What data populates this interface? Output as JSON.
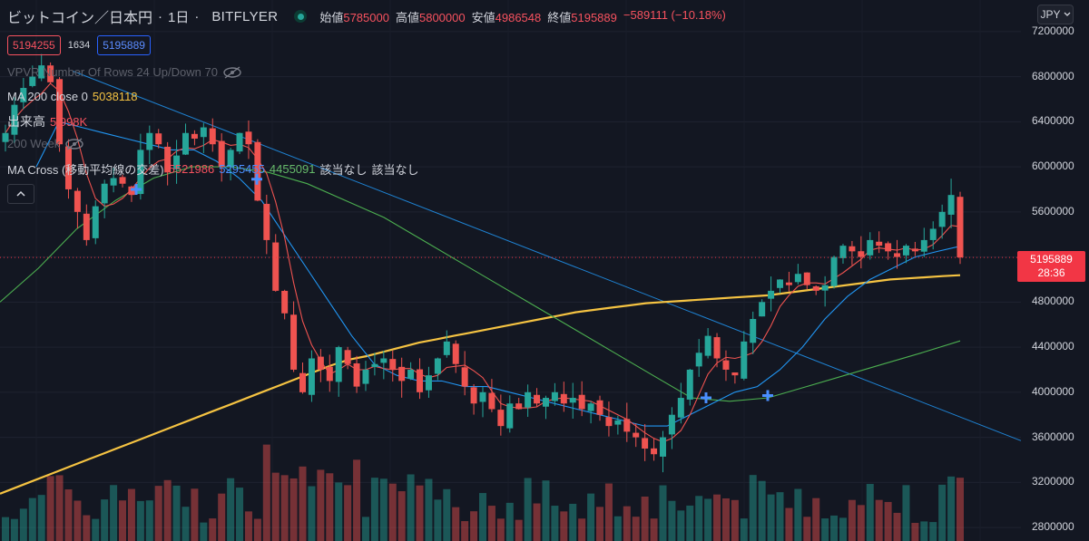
{
  "header": {
    "symbol": "ビットコイン／日本円",
    "interval": "1日",
    "exchange": "BITFLYER",
    "ohlc": [
      {
        "label": "始値",
        "value": "5785000"
      },
      {
        "label": "高値",
        "value": "5800000"
      },
      {
        "label": "安値",
        "value": "4986548"
      },
      {
        "label": "終値",
        "value": "5195889"
      }
    ],
    "change": "−589111 (−10.18%)"
  },
  "order": {
    "sell_price": "5194255",
    "spread": "1634",
    "buy_price": "5195889"
  },
  "indicators": {
    "vpvr": "VPVR Number Of Rows 24 Up/Down 70",
    "ma200_label": "MA 200 close 0",
    "ma200_value": "5038118",
    "volume_label": "出来高",
    "volume_value": "5.998K",
    "week200_label": "200 Week",
    "macross_label": "MA Cross (移動平均線の交差)",
    "macross_v1": "5521986",
    "macross_v2": "5295455",
    "macross_v3": "4455091",
    "macross_na1": "該当なし",
    "macross_na2": "該当なし"
  },
  "currency": "JPY",
  "last_price": "5195889",
  "countdown": "28:36",
  "colors": {
    "background": "#131722",
    "up": "#26a69a",
    "down": "#ef5350",
    "ma200": "#f5c342",
    "ma_fast": "#ef5350",
    "ma_mid": "#2196f3",
    "ma_slow": "#4caf50",
    "trendline": "#2196f3"
  },
  "chart_data": {
    "type": "candlestick",
    "y_axis_ticks": [
      7200000,
      6800000,
      6400000,
      6000000,
      5600000,
      5200000,
      4800000,
      4400000,
      4000000,
      3600000,
      3200000,
      2800000
    ],
    "y_axis_labels": [
      "7200000",
      "6800000",
      "6400000",
      "6000000",
      "5600000",
      "5195889",
      "4800000",
      "4400000",
      "4000000",
      "3600000",
      "3200000",
      "2800000"
    ],
    "ylim": [
      2680000,
      7480000
    ],
    "closes": [
      6300000,
      6550000,
      6700000,
      6800000,
      6900000,
      6750000,
      6200000,
      5800000,
      5600000,
      5350000,
      5650000,
      5850000,
      5900000,
      5850000,
      5750000,
      6150000,
      6300000,
      6200000,
      5950000,
      6100000,
      6300000,
      6250000,
      6350000,
      6200000,
      6000000,
      6150000,
      6300000,
      6200000,
      5700000,
      5350000,
      4900000,
      4700000,
      4200000,
      4000000,
      4300000,
      4200000,
      4100000,
      4400000,
      4250000,
      4050000,
      4200000,
      4250000,
      4300000,
      4200000,
      4100000,
      4200000,
      4000000,
      4150000,
      4300000,
      4450000,
      4250000,
      4050000,
      3900000,
      4000000,
      3850000,
      3700000,
      3900000,
      3850000,
      4000000,
      3900000,
      3950000,
      4000000,
      3900000,
      3950000,
      3850000,
      3900000,
      3800000,
      3700000,
      3750000,
      3650000,
      3600000,
      3500000,
      3450000,
      3600000,
      3800000,
      3950000,
      4200000,
      4350000,
      4500000,
      4300000,
      4200000,
      4150000,
      4450000,
      4650000,
      4800000,
      4900000,
      5000000,
      4950000,
      5050000,
      4950000,
      4900000,
      4950000,
      5200000,
      5300000,
      5250000,
      5200000,
      5350000,
      5300000,
      5250000,
      5200000,
      5300000,
      5250000,
      5350000,
      5450000,
      5600000,
      5750000,
      5195889
    ],
    "ma200": [
      3100000,
      3160000,
      3220000,
      3280000,
      3340000,
      3400000,
      3460000,
      3520000,
      3580000,
      3640000,
      3700000,
      3760000,
      3820000,
      3880000,
      3940000,
      4000000,
      4060000,
      4120000,
      4180000,
      4240000,
      4290000,
      4320000,
      4360000,
      4400000,
      4440000,
      4470000,
      4500000,
      4530000,
      4560000,
      4590000,
      4620000,
      4650000,
      4680000,
      4710000,
      4730000,
      4750000,
      4770000,
      4790000,
      4800000,
      4810000,
      4820000,
      4830000,
      4840000,
      4850000,
      4860000,
      4880000,
      4900000,
      4920000,
      4940000,
      4960000,
      4980000,
      5000000,
      5010000,
      5020000,
      5030000,
      5038118
    ],
    "ma_mid": [
      6000000,
      6400000,
      6350000,
      6300000,
      6250000,
      6200000,
      6150000,
      6150000,
      6050000,
      5900000,
      5700000,
      5400000,
      5100000,
      4800000,
      4500000,
      4250000,
      4150000,
      4100000,
      4100000,
      4050000,
      4050000,
      4000000,
      3950000,
      3900000,
      3850000,
      3800000,
      3750000,
      3700000,
      3700000,
      3800000,
      3900000,
      4000000,
      4050000,
      4200000,
      4400000,
      4650000,
      4850000,
      5000000,
      5100000,
      5200000,
      5250000,
      5295455
    ],
    "ma_slow": [
      4800000,
      5100000,
      5450000,
      5700000,
      5900000,
      6000000,
      6000000,
      5950000,
      5850000,
      5700000,
      5550000,
      5350000,
      5150000,
      4950000,
      4750000,
      4550000,
      4350000,
      4150000,
      3950000,
      3920000,
      3950000,
      4050000,
      4150000,
      4250000,
      4350000,
      4455091
    ],
    "trendline": {
      "from": [
        6850000
      ],
      "to": [
        3570000
      ]
    },
    "markers": [
      5800000,
      5890000,
      3950000,
      3970000
    ]
  }
}
